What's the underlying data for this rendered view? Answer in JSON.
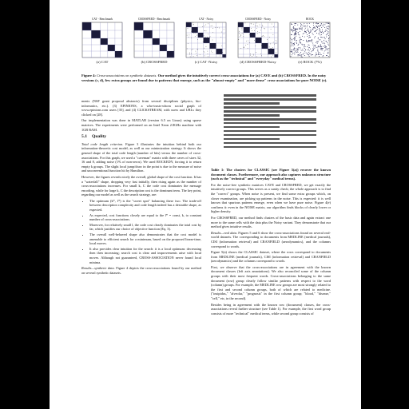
{
  "figure": {
    "panels": [
      {
        "title": "CAT - Benchmark",
        "caption": "(a) CAT",
        "style": "block"
      },
      {
        "title": "CROSSFRED - Benchmark",
        "caption": "(b) CROSSFRED",
        "style": "block"
      },
      {
        "title": "CAT - Noisy",
        "caption": "(c) CAT -Noisy",
        "style": "noisy"
      },
      {
        "title": "CROSSFRED - Noisy",
        "caption": "(d) CROSSFRED-Noisy",
        "style": "noisy"
      },
      {
        "title": "ROCK",
        "caption": "(e) ROCK (7%)",
        "style": "scatter"
      }
    ],
    "caption_label": "Figure 4:",
    "caption_title": "Cross-associations on synthetic datasets.",
    "caption_rest": "Our method gives the intuitively correct cross-associations for (a) CAVE and (b) CROSSFRED. In the noisy versions (c, d), few extra groups are found due to patterns that emerge, such as the \"almost-empty\" and \"more dense\" cross-associations for pure NOISE (e)."
  },
  "left": {
    "intro": "ments (NSF grant proposal abstracts) from several disciplines (physics, bio-informatics, etc.). (3) EPINIONS, a who-trusts-whom social graph of www.epinions.com users [35], and (4) CLICKSTREAM, with users and URLs they clicked on [28].",
    "impl": "Our implementation was done in MATLAB (version 6.5 on Linux) using sparse matrices. The experiments were performed on an Intel Xeon 2.8GHz machine with 1GB RAM.",
    "section_num": "5.1",
    "section_title": "Quality",
    "p1_lead": "Total code length criterion.",
    "p1": "Figure 3 illustrates the intuition behind both our information-theoretic cost model, as well as our minimization strategy. It shows the general shape of the total code length (number of bits) versus the number of cross-associations. For this graph, we used a \"caveman\" matrix with three caves of sizes 32, 16 and 8, adding noise (1% of non-zeros). We used ROCKEDY, forcing it to return empty k groups. The slight local jump/draw in the point is due to the measure of noise and unconventional function hit by Hamilton.",
    "p2": "However, the figures reveals nicely the overall, global shape of the cost function. It has a \"waterfall\" shape, dropping very fast initially, then rising again as the number of cross-associations increases. For small k, C the code cost dominates the message encoding, while for large k, C the description cost is the dominant term. The key point, regarding our model as well as the search strategy, are:",
    "bullets": [
      "The optimum (k*, l*) is the \"sweet spot\" balancing these two. The trade-off between description complexity and code length indeed has a desirable shape, as expected.",
      "As expected, cost functions closely are equal to the l* = const, k, to constant number of cross-associations.",
      "Moreover, for relatively small l, the code cost clearly dominates the total cost by far, which justifies our choice of objective function (Eq. 3).",
      "The overall well-behaved shape also demonstrates that the cost model is amenable to efficient search for a minimum, based on the proposed linear-time, local moves.",
      "It also provides clear intuition for the search: it is a local optimum: decreasing then then increasing; search cost is clear and improvements arise with local moves. Although not guaranteed, CROSS-ASSOCIATION never found local minima."
    ],
    "p3_lead": "Results—synthetic data.",
    "p3": "Figure 4 depicts the cross-associations found by our method on several synthetic datasets."
  },
  "right": {
    "table_caption": "Table 1: The clusters for CLASSIC (see Figure 5(a)) recover the known document classes. Furthermore, our approach also captures unknown structure (such as the \"technical\" and \"everyday\" medical terms).",
    "p1": "For the noise-free synthetic matrices CAVE and CROSSFRED, we get exactly the intuitively correct groups. This serves as a sanity check; the whole approach is to find the \"correct\" groups. When noise is present, we find some extra groups which, on closer examination, are picking up patterns in the noise. This is expected: it is well known that spurious patterns emerge, even when we have pure noise. Figure 4(e) confirms it: even in the NOISE matrix, our algorithm finds blocks of clearly lower or higher density.",
    "p2": "For CROSSFRED, our method finds clusters of the basic data and again extract one more to the same cells with the data plus the Noisy variant. They demonstrate that our method gives intuitive results.",
    "p3_lead": "Results—real data.",
    "p3": "Figures 5 and 6 show the cross-associations found on several real-world datasets. The corresponding to documents from MEDLINE (medical journals), CISI (information retrieval) and CRANFIELD (aerodynamics), and the columns correspond to words.",
    "p4": "Figure 5(a) shows the CLASSIC dataset, where the rows correspond to documents from MEDLINE (medical journals), CISI (information retrieval) and CRANFIELD (aerodynamics) and the columns correspond to words.",
    "p5": "First, we observe that the cross-associations are in agreement with the known document classes (left axis annotations). We also reconciled some of the column groups with their most frequent words. Cross-associations belonging to the same document (row) group clearly follow similar patterns with respect to the word (column) groups. For example, the MEDLINE row groups are most strongly related to the first and second column groups, both of which are related to medicine. (\"insipidus,\" \"alveolar,\" \"prognosis\" in the first column group; \"blood,\" \"disease,\" \"cell,\" etc, in the second).",
    "p6": "Besides being in agreement with the known row (document) classes, the cross-associations reveal further structure (see Table 1). For example, the first word group consists of more \"technical\" medical terms, while second group consists of"
  }
}
